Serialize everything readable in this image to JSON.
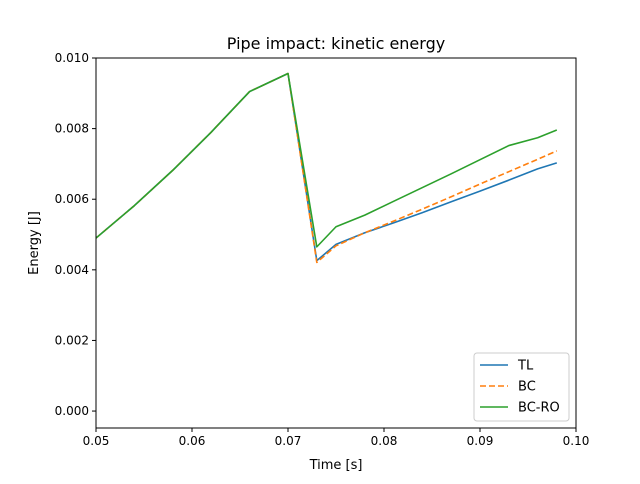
{
  "chart_data": {
    "type": "line",
    "title": "Pipe impact: kinetic energy",
    "xlabel": "Time [s]",
    "ylabel": "Energy [J]",
    "xlim": [
      0.05,
      0.1
    ],
    "ylim": [
      -0.00048,
      0.01
    ],
    "xticks": [
      0.05,
      0.06,
      0.07,
      0.08,
      0.09,
      0.1
    ],
    "xtick_labels": [
      "0.05",
      "0.06",
      "0.07",
      "0.08",
      "0.09",
      "0.10"
    ],
    "yticks": [
      0.0,
      0.002,
      0.004,
      0.006,
      0.008,
      0.01
    ],
    "ytick_labels": [
      "0.000",
      "0.002",
      "0.004",
      "0.006",
      "0.008",
      "0.010"
    ],
    "grid": false,
    "legend_position": "lower-right",
    "series": [
      {
        "name": "TL",
        "color": "#1f77b4",
        "style": "solid",
        "x": [
          0.05,
          0.054,
          0.058,
          0.062,
          0.066,
          0.07,
          0.073,
          0.075,
          0.078,
          0.081,
          0.084,
          0.087,
          0.09,
          0.093,
          0.096,
          0.098
        ],
        "y": [
          0.0049,
          0.00582,
          0.00682,
          0.0079,
          0.00905,
          0.00956,
          0.00426,
          0.00472,
          0.00505,
          0.00533,
          0.00562,
          0.00593,
          0.00623,
          0.00654,
          0.00686,
          0.00703
        ]
      },
      {
        "name": "BC",
        "color": "#ff7f0e",
        "style": "dashed",
        "x": [
          0.05,
          0.054,
          0.058,
          0.062,
          0.066,
          0.07,
          0.073,
          0.075,
          0.078,
          0.081,
          0.084,
          0.087,
          0.09,
          0.093,
          0.096,
          0.098
        ],
        "y": [
          0.0049,
          0.00582,
          0.00682,
          0.0079,
          0.00905,
          0.00956,
          0.00421,
          0.00468,
          0.00505,
          0.00538,
          0.00572,
          0.00607,
          0.00643,
          0.00678,
          0.00713,
          0.00737
        ]
      },
      {
        "name": "BC-RO",
        "color": "#2ca02c",
        "style": "solid",
        "x": [
          0.05,
          0.054,
          0.058,
          0.062,
          0.066,
          0.07,
          0.073,
          0.075,
          0.078,
          0.081,
          0.084,
          0.087,
          0.09,
          0.093,
          0.096,
          0.098
        ],
        "y": [
          0.0049,
          0.00582,
          0.00682,
          0.0079,
          0.00905,
          0.00956,
          0.00465,
          0.00522,
          0.00555,
          0.00594,
          0.00633,
          0.00672,
          0.00712,
          0.00752,
          0.00774,
          0.00796
        ]
      }
    ]
  }
}
